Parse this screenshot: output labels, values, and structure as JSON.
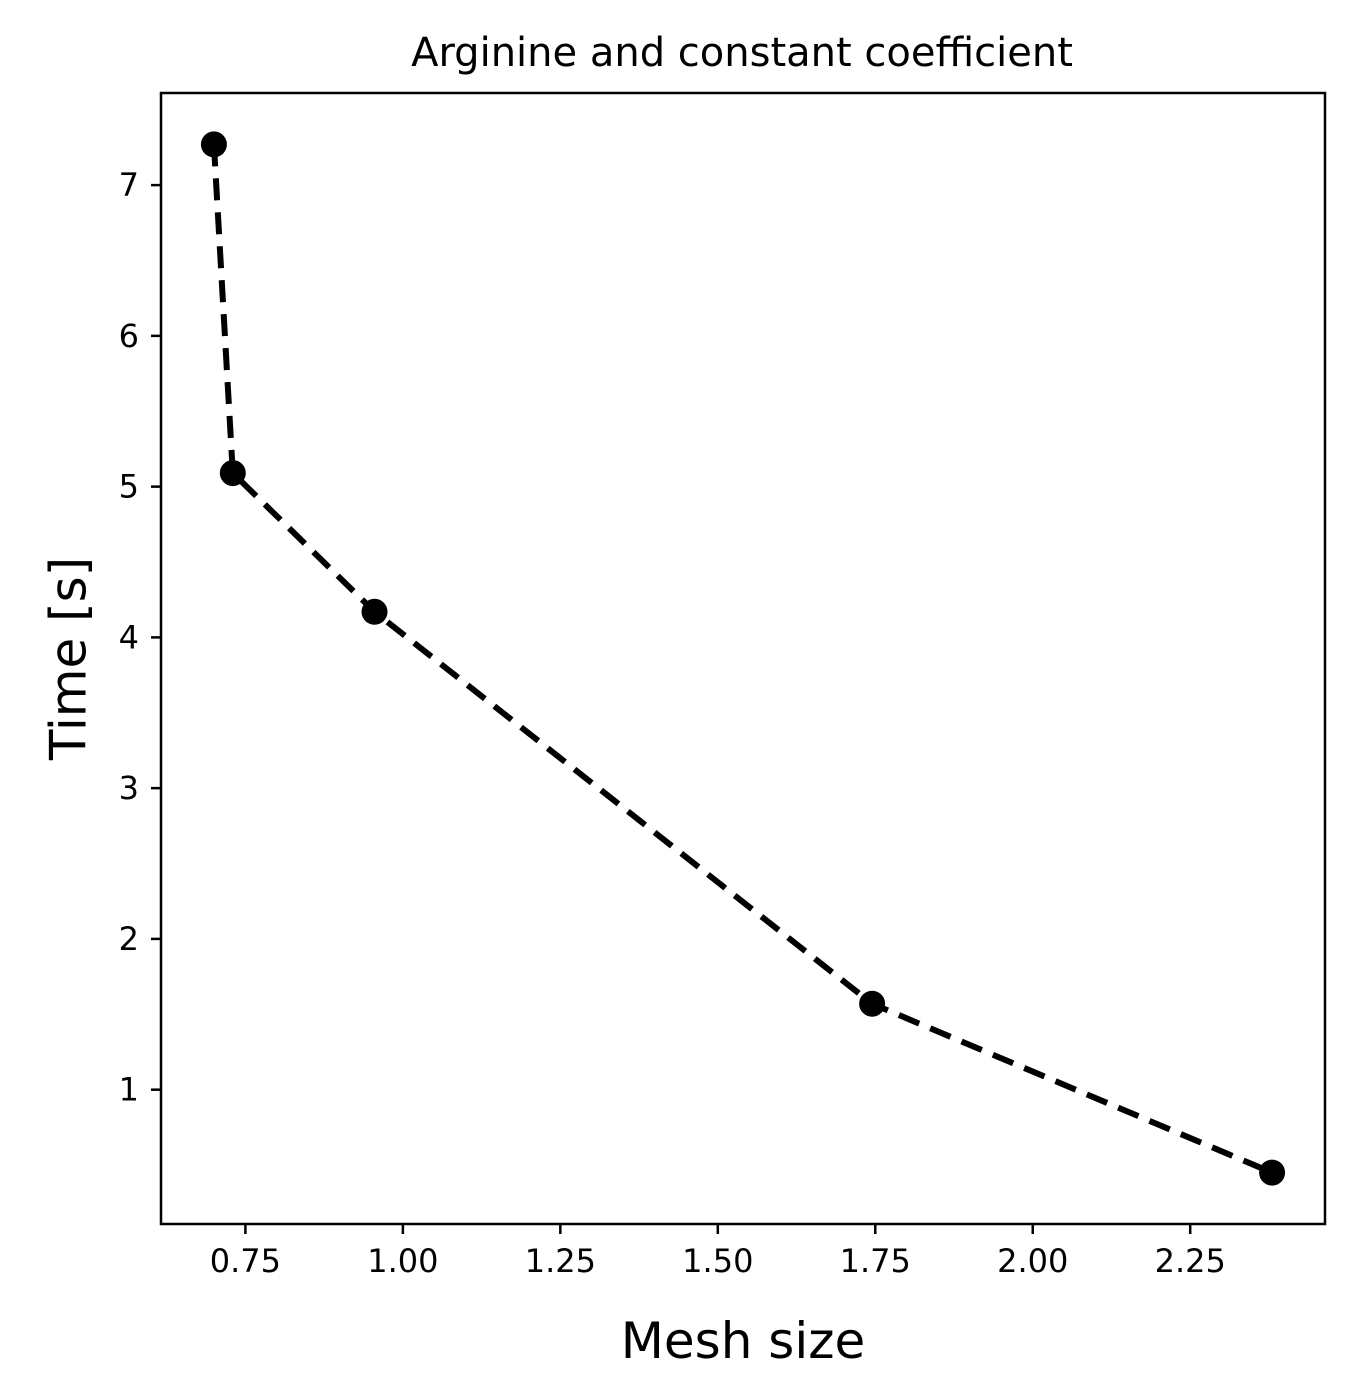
{
  "chart_data": {
    "type": "line",
    "title": "Arginine and constant coefficient",
    "xlabel": "Mesh size",
    "ylabel": "Time [s]",
    "series": [
      {
        "name": "",
        "x": [
          0.7,
          0.73,
          0.955,
          1.745,
          2.38
        ],
        "y": [
          7.27,
          5.09,
          4.17,
          1.57,
          0.45
        ],
        "style": "dashed",
        "marker": "circle",
        "color": "#000000"
      }
    ],
    "xlim": [
      0.616,
      2.464
    ],
    "ylim": [
      0.109,
      7.611
    ],
    "xticks": [
      0.75,
      1.0,
      1.25,
      1.5,
      1.75,
      2.0,
      2.25
    ],
    "xtick_labels": [
      "0.75",
      "1.00",
      "1.25",
      "1.50",
      "1.75",
      "2.00",
      "2.25"
    ],
    "yticks": [
      1,
      2,
      3,
      4,
      5,
      6,
      7
    ],
    "ytick_labels": [
      "1",
      "2",
      "3",
      "4",
      "5",
      "6",
      "7"
    ],
    "grid": false,
    "legend": "none"
  }
}
